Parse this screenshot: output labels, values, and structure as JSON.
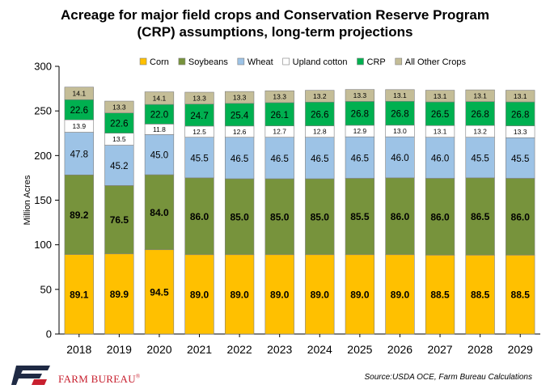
{
  "chart_data": {
    "type": "bar",
    "stacked": true,
    "title_lines": [
      "Acreage for major field crops and Conservation Reserve Program",
      "(CRP) assumptions, long-term projections"
    ],
    "ylabel": "Million Acres",
    "ylim": [
      0,
      300
    ],
    "yticks": [
      0,
      50,
      100,
      150,
      200,
      250,
      300
    ],
    "ytick_labels": [
      "0",
      "50",
      "100",
      "150",
      "200",
      "250",
      "300"
    ],
    "categories": [
      "2018",
      "2019",
      "2020",
      "2021",
      "2022",
      "2023",
      "2024",
      "2025",
      "2026",
      "2027",
      "2028",
      "2029"
    ],
    "legend_position": "top",
    "series": [
      {
        "name": "Corn",
        "color": "#FFC000",
        "label_bold": true,
        "values": [
          89.1,
          89.9,
          94.5,
          89.0,
          89.0,
          89.0,
          89.0,
          89.0,
          89.0,
          88.5,
          88.5,
          88.5
        ]
      },
      {
        "name": "Soybeans",
        "color": "#77933C",
        "label_bold": true,
        "values": [
          89.2,
          76.5,
          84.0,
          86.0,
          85.0,
          85.0,
          85.0,
          85.5,
          86.0,
          86.0,
          86.5,
          86.0
        ]
      },
      {
        "name": "Wheat",
        "color": "#9DC3E6",
        "label_bold": false,
        "values": [
          47.8,
          45.2,
          45.0,
          45.5,
          46.5,
          46.5,
          46.5,
          46.5,
          46.0,
          46.0,
          45.5,
          45.5
        ]
      },
      {
        "name": "Upland cotton",
        "color": "#FFFFFF",
        "label_bold": false,
        "values": [
          13.9,
          13.5,
          11.8,
          12.5,
          12.6,
          12.7,
          12.8,
          12.9,
          13.0,
          13.1,
          13.2,
          13.3
        ]
      },
      {
        "name": "CRP",
        "color": "#00B050",
        "label_bold": false,
        "values": [
          22.6,
          22.6,
          22.0,
          24.7,
          25.4,
          26.1,
          26.6,
          26.8,
          26.8,
          26.5,
          26.8,
          26.8
        ]
      },
      {
        "name": "All Other Crops",
        "color": "#C4BD97",
        "label_bold": false,
        "values": [
          14.1,
          13.3,
          14.1,
          13.3,
          13.3,
          13.3,
          13.2,
          13.3,
          13.1,
          13.1,
          13.1,
          13.1
        ]
      }
    ]
  },
  "footer": {
    "brand": "FARM BUREAU",
    "brand_mark": "®",
    "source": "Source:USDA OCE, Farm Bureau Calculations",
    "brand_color": "#C8202F",
    "logo_color": "#1F2A44"
  }
}
